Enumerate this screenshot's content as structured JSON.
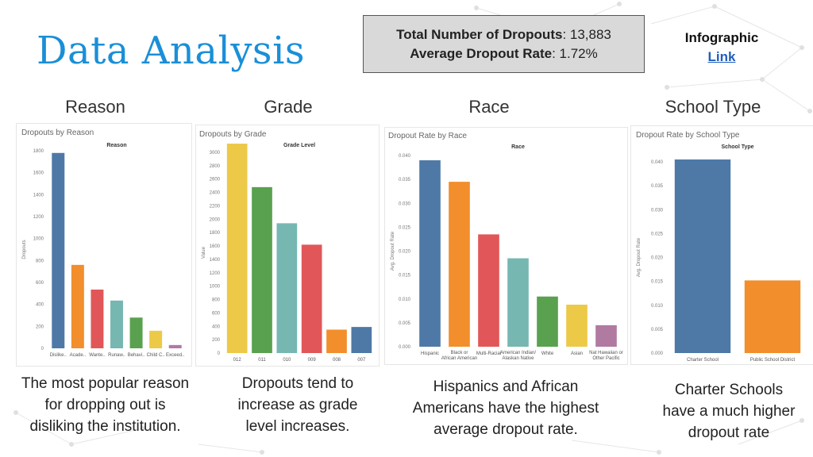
{
  "page_title": "Data Analysis",
  "stats": {
    "total_label": "Total Number of Dropouts",
    "total_value": ": 13,883",
    "rate_label": "Average Dropout Rate",
    "rate_value": ": 1.72%"
  },
  "infographic": {
    "label": "Infographic",
    "link": "Link"
  },
  "sections": {
    "reason": "Reason",
    "grade": "Grade",
    "race": "Race",
    "school_type": "School Type"
  },
  "captions": {
    "reason": [
      "The most popular reason",
      "for dropping out is",
      "disliking the institution."
    ],
    "grade": [
      "Dropouts tend to",
      "increase as grade",
      "level increases."
    ],
    "race": [
      "Hispanics and African",
      "Americans have the highest",
      "average dropout rate."
    ],
    "school_type": [
      "Charter Schools",
      "have a much higher",
      "dropout rate"
    ]
  },
  "chart_data": [
    {
      "type": "bar",
      "title": "Dropouts by Reason",
      "header": "Reason",
      "ylabel": "Dropouts",
      "ylim": [
        0,
        1800
      ],
      "yticks": [
        "0",
        "200",
        "400",
        "600",
        "800",
        "1000",
        "1200",
        "1400",
        "1600",
        "1800"
      ],
      "categories": [
        "Dislike..",
        "Acade..",
        "Wante..",
        "Runaw..",
        "Behavi..",
        "Child C..",
        "Exceed.."
      ],
      "values": [
        1780,
        760,
        535,
        435,
        280,
        160,
        30
      ],
      "colors": [
        "#4e79a7",
        "#f28e2b",
        "#e15759",
        "#76b7b2",
        "#59a14f",
        "#edc948",
        "#b07aa1"
      ]
    },
    {
      "type": "bar",
      "title": "Dropouts by Grade",
      "header": "Grade Level",
      "ylabel": "Value",
      "ylim": [
        0,
        3000
      ],
      "yticks": [
        "0",
        "200",
        "400",
        "600",
        "800",
        "1000",
        "1200",
        "1400",
        "1600",
        "1800",
        "2000",
        "2200",
        "2400",
        "2600",
        "2800",
        "3000"
      ],
      "categories": [
        "012",
        "011",
        "010",
        "009",
        "008",
        "007"
      ],
      "values": [
        3130,
        2480,
        1940,
        1620,
        350,
        390
      ],
      "colors": [
        "#edc948",
        "#59a14f",
        "#76b7b2",
        "#e15759",
        "#f28e2b",
        "#4e79a7"
      ]
    },
    {
      "type": "bar",
      "title": "Dropout Rate by Race",
      "header": "Race",
      "ylabel": "Avg. Dropout Rate",
      "ylim": [
        0,
        0.04
      ],
      "yticks": [
        "0.000",
        "0.005",
        "0.010",
        "0.015",
        "0.020",
        "0.025",
        "0.030",
        "0.035",
        "0.040"
      ],
      "categories": [
        "Hispanic",
        "Black or African American",
        "Multi-Racial",
        "American Indian/ Alaskan Native",
        "White",
        "Asian",
        "Nat Hawaiian or Other Pacific"
      ],
      "values": [
        0.039,
        0.0345,
        0.0235,
        0.0185,
        0.0105,
        0.0088,
        0.0045
      ],
      "colors": [
        "#4e79a7",
        "#f28e2b",
        "#e15759",
        "#76b7b2",
        "#59a14f",
        "#edc948",
        "#b07aa1"
      ]
    },
    {
      "type": "bar",
      "title": "Dropout Rate by School Type",
      "header": "School Type",
      "ylabel": "Avg. Dropout Rate",
      "ylim": [
        0,
        0.04
      ],
      "yticks": [
        "0.000",
        "0.005",
        "0.010",
        "0.015",
        "0.020",
        "0.025",
        "0.030",
        "0.035",
        "0.040"
      ],
      "categories": [
        "Charter School",
        "Public School District"
      ],
      "values": [
        0.0405,
        0.0152
      ],
      "colors": [
        "#4e79a7",
        "#f28e2b"
      ]
    }
  ]
}
